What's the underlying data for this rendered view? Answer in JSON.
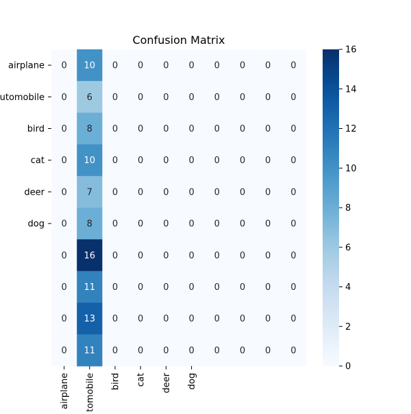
{
  "chart_data": {
    "type": "heatmap",
    "title": "Confusion Matrix",
    "row_labels": [
      "airplane",
      "automobile",
      "bird",
      "cat",
      "deer",
      "dog",
      "",
      "",
      "",
      ""
    ],
    "col_labels": [
      "airplane",
      "automobile",
      "bird",
      "cat",
      "deer",
      "dog",
      "",
      "",
      "",
      ""
    ],
    "values": [
      [
        0,
        10,
        0,
        0,
        0,
        0,
        0,
        0,
        0,
        0
      ],
      [
        0,
        6,
        0,
        0,
        0,
        0,
        0,
        0,
        0,
        0
      ],
      [
        0,
        8,
        0,
        0,
        0,
        0,
        0,
        0,
        0,
        0
      ],
      [
        0,
        10,
        0,
        0,
        0,
        0,
        0,
        0,
        0,
        0
      ],
      [
        0,
        7,
        0,
        0,
        0,
        0,
        0,
        0,
        0,
        0
      ],
      [
        0,
        8,
        0,
        0,
        0,
        0,
        0,
        0,
        0,
        0
      ],
      [
        0,
        16,
        0,
        0,
        0,
        0,
        0,
        0,
        0,
        0
      ],
      [
        0,
        11,
        0,
        0,
        0,
        0,
        0,
        0,
        0,
        0
      ],
      [
        0,
        13,
        0,
        0,
        0,
        0,
        0,
        0,
        0,
        0
      ],
      [
        0,
        11,
        0,
        0,
        0,
        0,
        0,
        0,
        0,
        0
      ]
    ],
    "colorscale": "Blues",
    "colorbar": {
      "min": 0,
      "max": 16,
      "ticks": [
        0,
        2,
        4,
        6,
        8,
        10,
        12,
        14,
        16
      ]
    },
    "annotations": true,
    "grid": false
  }
}
